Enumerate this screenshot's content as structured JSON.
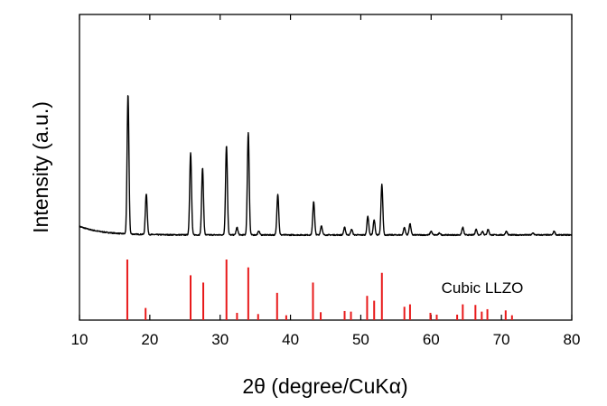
{
  "chart_data": {
    "type": "line",
    "xlabel": "2θ (degree/CuKα)",
    "ylabel": "Intensity (a.u.)",
    "xlim": [
      10,
      80
    ],
    "x_ticks": [
      "10",
      "20",
      "30",
      "40",
      "50",
      "60",
      "70",
      "80"
    ],
    "y_ticks_labeled": false,
    "grid": false,
    "background_start": 0.076,
    "background_end": 0.03,
    "pattern_peaks": [
      {
        "x": 16.9,
        "y": 0.75
      },
      {
        "x": 19.5,
        "y": 0.22
      },
      {
        "x": 25.8,
        "y": 0.44
      },
      {
        "x": 27.5,
        "y": 0.36
      },
      {
        "x": 30.9,
        "y": 0.48
      },
      {
        "x": 32.4,
        "y": 0.04
      },
      {
        "x": 34.0,
        "y": 0.55
      },
      {
        "x": 35.5,
        "y": 0.02
      },
      {
        "x": 38.2,
        "y": 0.22
      },
      {
        "x": 43.3,
        "y": 0.18
      },
      {
        "x": 44.4,
        "y": 0.05
      },
      {
        "x": 47.7,
        "y": 0.04
      },
      {
        "x": 48.7,
        "y": 0.03
      },
      {
        "x": 51.0,
        "y": 0.1
      },
      {
        "x": 51.9,
        "y": 0.08
      },
      {
        "x": 53.0,
        "y": 0.27
      },
      {
        "x": 56.2,
        "y": 0.04
      },
      {
        "x": 57.0,
        "y": 0.06
      },
      {
        "x": 60.0,
        "y": 0.02
      },
      {
        "x": 61.2,
        "y": 0.01
      },
      {
        "x": 64.5,
        "y": 0.04
      },
      {
        "x": 66.4,
        "y": 0.03
      },
      {
        "x": 67.3,
        "y": 0.02
      },
      {
        "x": 68.1,
        "y": 0.03
      },
      {
        "x": 70.7,
        "y": 0.02
      },
      {
        "x": 74.5,
        "y": 0.01
      },
      {
        "x": 77.5,
        "y": 0.02
      }
    ],
    "reference": {
      "label": "Cubic LLZO",
      "color": "#e8191a",
      "sticks": [
        {
          "x": 16.8,
          "y": 1.0
        },
        {
          "x": 19.4,
          "y": 0.2
        },
        {
          "x": 25.8,
          "y": 0.74
        },
        {
          "x": 27.6,
          "y": 0.62
        },
        {
          "x": 30.9,
          "y": 1.0
        },
        {
          "x": 32.4,
          "y": 0.12
        },
        {
          "x": 34.0,
          "y": 0.87
        },
        {
          "x": 35.4,
          "y": 0.1
        },
        {
          "x": 38.1,
          "y": 0.45
        },
        {
          "x": 39.4,
          "y": 0.08
        },
        {
          "x": 43.2,
          "y": 0.62
        },
        {
          "x": 44.3,
          "y": 0.13
        },
        {
          "x": 47.7,
          "y": 0.15
        },
        {
          "x": 48.6,
          "y": 0.14
        },
        {
          "x": 50.9,
          "y": 0.4
        },
        {
          "x": 51.9,
          "y": 0.32
        },
        {
          "x": 53.0,
          "y": 0.78
        },
        {
          "x": 56.2,
          "y": 0.22
        },
        {
          "x": 57.0,
          "y": 0.26
        },
        {
          "x": 59.9,
          "y": 0.12
        },
        {
          "x": 60.8,
          "y": 0.09
        },
        {
          "x": 63.7,
          "y": 0.09
        },
        {
          "x": 64.5,
          "y": 0.26
        },
        {
          "x": 66.3,
          "y": 0.25
        },
        {
          "x": 67.2,
          "y": 0.14
        },
        {
          "x": 68.0,
          "y": 0.18
        },
        {
          "x": 70.6,
          "y": 0.16
        },
        {
          "x": 71.5,
          "y": 0.08
        }
      ]
    },
    "colors": {
      "pattern": "#000000",
      "axes": "#000000"
    }
  }
}
